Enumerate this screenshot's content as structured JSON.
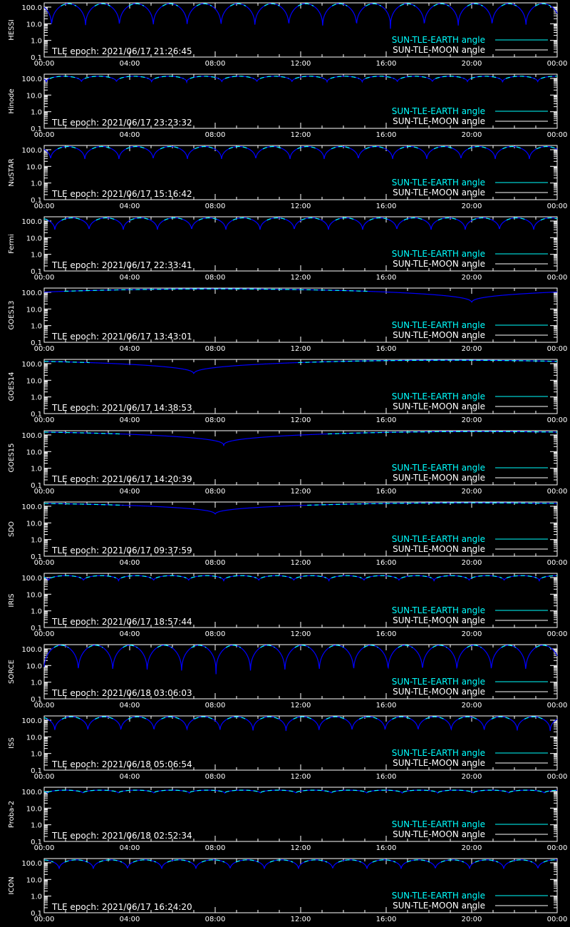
{
  "legend": {
    "earth_label": "SUN-TLE-EARTH angle",
    "moon_label": "SUN-TLE-MOON angle",
    "earth_color": "#00ffff",
    "moon_color": "#ffffff"
  },
  "colors": {
    "background": "#000000",
    "axes": "#ffffff",
    "curve_low": "#0000ff",
    "curve_high": "#00ffff"
  },
  "chart_data": [
    {
      "type": "line",
      "ylabel": "HESSI",
      "epoch": "TLE epoch: 2021/06/17 21:26:45",
      "x": [
        "00:00",
        "04:00",
        "08:00",
        "12:00",
        "16:00",
        "20:00",
        "00:00"
      ],
      "yscale": "log",
      "ylim": [
        0.1,
        180
      ],
      "yticks": [
        "0.1",
        "1.0",
        "10.0",
        "100.0"
      ],
      "xlim_hours": [
        0,
        24
      ],
      "orbit_period_hours": 1.585,
      "phase_hours": 0.35,
      "min_angle": 5,
      "max_angle": 160,
      "series": [
        {
          "color": "#0000ff"
        }
      ]
    },
    {
      "type": "line",
      "ylabel": "Hinode",
      "epoch": "TLE epoch: 2021/06/17 23:23:32",
      "x": [
        "00:00",
        "04:00",
        "08:00",
        "12:00",
        "16:00",
        "20:00",
        "00:00"
      ],
      "yscale": "log",
      "ylim": [
        0.1,
        180
      ],
      "yticks": [
        "0.1",
        "1.0",
        "10.0",
        "100.0"
      ],
      "xlim_hours": [
        0,
        24
      ],
      "orbit_period_hours": 1.642,
      "phase_hours": 0.1,
      "min_angle": 55,
      "max_angle": 135,
      "series": [
        {
          "color": "#0000ff"
        }
      ]
    },
    {
      "type": "line",
      "ylabel": "NuSTAR",
      "epoch": "TLE epoch: 2021/06/17 15:16:42",
      "x": [
        "00:00",
        "04:00",
        "08:00",
        "12:00",
        "16:00",
        "20:00",
        "00:00"
      ],
      "yscale": "log",
      "ylim": [
        0.1,
        180
      ],
      "yticks": [
        "0.1",
        "1.0",
        "10.0",
        "100.0"
      ],
      "xlim_hours": [
        0,
        24
      ],
      "orbit_period_hours": 1.6,
      "phase_hours": 0.3,
      "min_angle": 20,
      "max_angle": 155,
      "series": [
        {
          "color": "#0000ff"
        }
      ]
    },
    {
      "type": "line",
      "ylabel": "Fermi",
      "epoch": "TLE epoch: 2021/06/17 22:33:41",
      "x": [
        "00:00",
        "04:00",
        "08:00",
        "12:00",
        "16:00",
        "20:00",
        "00:00"
      ],
      "yscale": "log",
      "ylim": [
        0.1,
        180
      ],
      "yticks": [
        "0.1",
        "1.0",
        "10.0",
        "100.0"
      ],
      "xlim_hours": [
        0,
        24
      ],
      "orbit_period_hours": 1.6,
      "phase_hours": 0.5,
      "min_angle": 22,
      "max_angle": 155,
      "series": [
        {
          "color": "#0000ff"
        }
      ]
    },
    {
      "type": "line",
      "ylabel": "GOES13",
      "epoch": "TLE epoch: 2021/06/17 13:43:01",
      "x": [
        "00:00",
        "04:00",
        "08:00",
        "12:00",
        "16:00",
        "20:00",
        "00:00"
      ],
      "yscale": "log",
      "ylim": [
        0.1,
        180
      ],
      "yticks": [
        "0.1",
        "1.0",
        "10.0",
        "100.0"
      ],
      "xlim_hours": [
        0,
        24
      ],
      "orbit_period_hours": 23.93,
      "phase_hours": 20.0,
      "min_angle": 22,
      "max_angle": 160,
      "series": [
        {
          "color": "#0000ff"
        }
      ]
    },
    {
      "type": "line",
      "ylabel": "GOES14",
      "epoch": "TLE epoch: 2021/06/17 14:38:53",
      "x": [
        "00:00",
        "04:00",
        "08:00",
        "12:00",
        "16:00",
        "20:00",
        "00:00"
      ],
      "yscale": "log",
      "ylim": [
        0.1,
        180
      ],
      "yticks": [
        "0.1",
        "1.0",
        "10.0",
        "100.0"
      ],
      "xlim_hours": [
        0,
        24
      ],
      "orbit_period_hours": 23.93,
      "phase_hours": 7.0,
      "min_angle": 22,
      "max_angle": 160,
      "series": [
        {
          "color": "#0000ff"
        }
      ]
    },
    {
      "type": "line",
      "ylabel": "GOES15",
      "epoch": "TLE epoch: 2021/06/17 14:20:39",
      "x": [
        "00:00",
        "04:00",
        "08:00",
        "12:00",
        "16:00",
        "20:00",
        "00:00"
      ],
      "yscale": "log",
      "ylim": [
        0.1,
        180
      ],
      "yticks": [
        "0.1",
        "1.0",
        "10.0",
        "100.0"
      ],
      "xlim_hours": [
        0,
        24
      ],
      "orbit_period_hours": 23.93,
      "phase_hours": 8.4,
      "min_angle": 22,
      "max_angle": 160,
      "series": [
        {
          "color": "#0000ff"
        }
      ]
    },
    {
      "type": "line",
      "ylabel": "SDO",
      "epoch": "TLE epoch: 2021/06/17 09:37:59",
      "x": [
        "00:00",
        "04:00",
        "08:00",
        "12:00",
        "16:00",
        "20:00",
        "00:00"
      ],
      "yscale": "log",
      "ylim": [
        0.1,
        180
      ],
      "yticks": [
        "0.1",
        "1.0",
        "10.0",
        "100.0"
      ],
      "xlim_hours": [
        0,
        24
      ],
      "orbit_period_hours": 23.93,
      "phase_hours": 8.0,
      "min_angle": 30,
      "max_angle": 160,
      "series": [
        {
          "color": "#0000ff"
        }
      ]
    },
    {
      "type": "line",
      "ylabel": "IRIS",
      "epoch": "TLE epoch: 2021/06/17 18:57:44",
      "x": [
        "00:00",
        "04:00",
        "08:00",
        "12:00",
        "16:00",
        "20:00",
        "00:00"
      ],
      "yscale": "log",
      "ylim": [
        0.1,
        180
      ],
      "yticks": [
        "0.1",
        "1.0",
        "10.0",
        "100.0"
      ],
      "xlim_hours": [
        0,
        24
      ],
      "orbit_period_hours": 1.64,
      "phase_hours": 0.2,
      "min_angle": 60,
      "max_angle": 130,
      "series": [
        {
          "color": "#0000ff"
        }
      ]
    },
    {
      "type": "line",
      "ylabel": "SORCE",
      "epoch": "TLE epoch: 2021/06/18 03:06:03",
      "x": [
        "00:00",
        "04:00",
        "08:00",
        "12:00",
        "16:00",
        "20:00",
        "00:00"
      ],
      "yscale": "log",
      "ylim": [
        0.1,
        180
      ],
      "yticks": [
        "0.1",
        "1.0",
        "10.0",
        "100.0"
      ],
      "xlim_hours": [
        0,
        24
      ],
      "orbit_period_hours": 1.61,
      "phase_hours": 1.6,
      "min_angle": 3,
      "max_angle": 165,
      "series": [
        {
          "color": "#0000ff"
        }
      ]
    },
    {
      "type": "line",
      "ylabel": "ISS",
      "epoch": "TLE epoch: 2021/06/18 05:06:54",
      "x": [
        "00:00",
        "04:00",
        "08:00",
        "12:00",
        "16:00",
        "20:00",
        "00:00"
      ],
      "yscale": "log",
      "ylim": [
        0.1,
        180
      ],
      "yticks": [
        "0.1",
        "1.0",
        "10.0",
        "100.0"
      ],
      "xlim_hours": [
        0,
        24
      ],
      "orbit_period_hours": 1.545,
      "phase_hours": 0.5,
      "min_angle": 18,
      "max_angle": 160,
      "series": [
        {
          "color": "#0000ff"
        }
      ]
    },
    {
      "type": "line",
      "ylabel": "Proba-2",
      "epoch": "TLE epoch: 2021/06/18 02:52:34",
      "x": [
        "00:00",
        "04:00",
        "08:00",
        "12:00",
        "16:00",
        "20:00",
        "00:00"
      ],
      "yscale": "log",
      "ylim": [
        0.1,
        180
      ],
      "yticks": [
        "0.1",
        "1.0",
        "10.0",
        "100.0"
      ],
      "xlim_hours": [
        0,
        24
      ],
      "orbit_period_hours": 1.66,
      "phase_hours": 0.15,
      "min_angle": 75,
      "max_angle": 120,
      "series": [
        {
          "color": "#0000ff"
        }
      ]
    },
    {
      "type": "line",
      "ylabel": "ICON",
      "epoch": "TLE epoch: 2021/06/17 16:24:20",
      "x": [
        "00:00",
        "04:00",
        "08:00",
        "12:00",
        "16:00",
        "20:00",
        "00:00"
      ],
      "yscale": "log",
      "ylim": [
        0.1,
        180
      ],
      "yticks": [
        "0.1",
        "1.0",
        "10.0",
        "100.0"
      ],
      "xlim_hours": [
        0,
        24
      ],
      "orbit_period_hours": 1.6,
      "phase_hours": 0.7,
      "min_angle": 35,
      "max_angle": 150,
      "series": [
        {
          "color": "#0000ff"
        }
      ]
    }
  ]
}
